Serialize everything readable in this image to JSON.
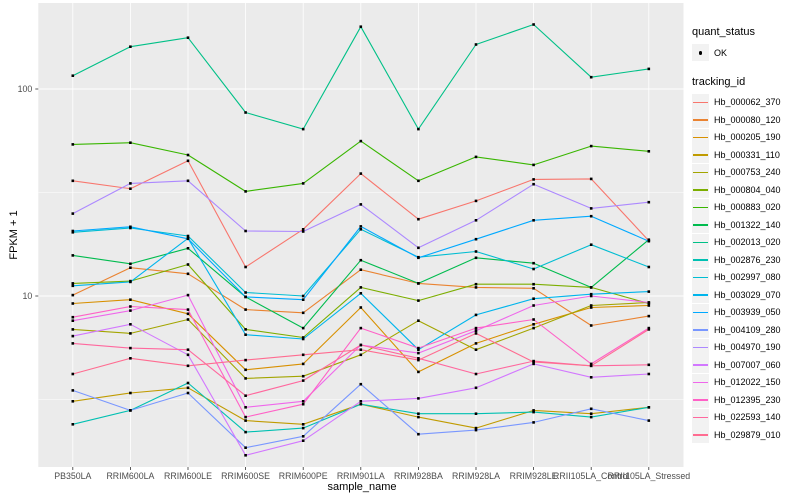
{
  "figure": {
    "x_axis_title": "sample_name",
    "y_axis_title": "FPKM + 1",
    "panel_bg": "#EBEBEB",
    "grid_color": "#FFFFFF",
    "tick_label_color": "#4D4D4D",
    "point_color": "#000000"
  },
  "legend": {
    "quant_status_title": "quant_status",
    "quant_status_items": [
      {
        "label": "OK",
        "marker": "black-point"
      }
    ],
    "tracking_id_title": "tracking_id"
  },
  "chart_data": {
    "type": "line",
    "title": "",
    "xlabel": "sample_name",
    "ylabel": "FPKM + 1",
    "yscale": "log10",
    "yticks": [
      10,
      100
    ],
    "ylim": [
      1.5,
      260
    ],
    "grid": "on",
    "legend_position": "right",
    "marker": "black point on every value",
    "categories": [
      "PB350LA",
      "RRIM600LA",
      "RRIM600LE",
      "RRIM600SE",
      "RRIM600PE",
      "RRIM901LA",
      "RRIM928BA",
      "RRIM928LA",
      "RRIM928LE",
      "RRII105LA_Control",
      "RRII105LA_Stressed"
    ],
    "series": [
      {
        "name": "Hb_000062_370",
        "color": "#F8766D",
        "values": [
          36,
          33,
          45,
          13.8,
          21,
          39,
          23.5,
          28.8,
          36.6,
          36.8,
          18.5
        ]
      },
      {
        "name": "Hb_000080_120",
        "color": "#EA8331",
        "values": [
          10.1,
          13.7,
          12.8,
          8.6,
          8.3,
          13.4,
          11.5,
          11,
          10.9,
          7.2,
          8
        ]
      },
      {
        "name": "Hb_000205_190",
        "color": "#D89000",
        "values": [
          9.2,
          9.6,
          8.2,
          4.4,
          4.7,
          8.8,
          4.3,
          5.9,
          7.3,
          8.8,
          9
        ]
      },
      {
        "name": "Hb_000331_110",
        "color": "#C09B00",
        "values": [
          3.1,
          3.4,
          3.6,
          2.5,
          2.4,
          3,
          2.6,
          2.3,
          2.8,
          2.7,
          2.9
        ]
      },
      {
        "name": "Hb_000753_240",
        "color": "#A3A500",
        "values": [
          6.9,
          6.6,
          7.7,
          4,
          4.1,
          5.2,
          7.6,
          5.5,
          7,
          9,
          9.3
        ]
      },
      {
        "name": "Hb_000804_040",
        "color": "#7CAE00",
        "values": [
          11.5,
          11.8,
          14.2,
          6.9,
          6.3,
          11,
          9.5,
          11.4,
          11.4,
          11,
          9.2
        ]
      },
      {
        "name": "Hb_000883_020",
        "color": "#39B600",
        "values": [
          54,
          55,
          48,
          32,
          35,
          56,
          36,
          47,
          43,
          53,
          50
        ]
      },
      {
        "name": "Hb_001322_140",
        "color": "#00BB4E",
        "values": [
          15.7,
          14.3,
          17,
          9.9,
          7,
          14.9,
          11.5,
          15.3,
          14.4,
          11,
          18.7
        ]
      },
      {
        "name": "Hb_002013_020",
        "color": "#00C087",
        "values": [
          116,
          160,
          177,
          77,
          64,
          200,
          64,
          164,
          205,
          114,
          125
        ]
      },
      {
        "name": "Hb_002876_230",
        "color": "#00C0B2",
        "values": [
          2.4,
          2.8,
          3.8,
          2.2,
          2.3,
          3,
          2.7,
          2.7,
          2.75,
          2.6,
          2.9
        ]
      },
      {
        "name": "Hb_002997_080",
        "color": "#00BDD2",
        "values": [
          20.3,
          21.3,
          19.5,
          10.4,
          10,
          21,
          15.4,
          16.4,
          13.5,
          17.7,
          13.8
        ]
      },
      {
        "name": "Hb_003029_070",
        "color": "#00B5EC",
        "values": [
          11.2,
          11.7,
          19,
          6.5,
          6.2,
          10.3,
          5.5,
          8.1,
          9.7,
          10.2,
          10.5
        ]
      },
      {
        "name": "Hb_003939_050",
        "color": "#00A9FF",
        "values": [
          20.6,
          21.6,
          18.9,
          9.9,
          9.6,
          21.7,
          15.3,
          18.8,
          23.2,
          24.3,
          18.4
        ]
      },
      {
        "name": "Hb_004109_280",
        "color": "#7997FF",
        "values": [
          3.5,
          2.8,
          3.4,
          1.85,
          2.1,
          3.75,
          2.15,
          2.25,
          2.45,
          2.85,
          2.5
        ]
      },
      {
        "name": "Hb_004970_190",
        "color": "#AC88FF",
        "values": [
          25,
          35,
          36,
          20.6,
          20.5,
          27.7,
          17.1,
          23.2,
          34.7,
          26.5,
          28.4
        ]
      },
      {
        "name": "Hb_007007_060",
        "color": "#D277FF",
        "values": [
          6.4,
          7.3,
          5.2,
          1.7,
          2,
          3.1,
          3.2,
          3.6,
          4.7,
          4.05,
          4.2
        ]
      },
      {
        "name": "Hb_012022_150",
        "color": "#EF67EB",
        "values": [
          7.6,
          8.5,
          10.1,
          2.9,
          3.1,
          5.8,
          5.3,
          6.8,
          9,
          10,
          9.3
        ]
      },
      {
        "name": "Hb_012395_230",
        "color": "#FF61C7",
        "values": [
          7.9,
          8.9,
          8.6,
          2.6,
          3,
          7,
          5.6,
          7,
          7.7,
          4.7,
          7
        ]
      },
      {
        "name": "Hb_022593_140",
        "color": "#FF689E",
        "values": [
          5.9,
          5.6,
          5.5,
          3.3,
          3.9,
          5.8,
          5,
          4.2,
          4.85,
          4.6,
          4.65
        ]
      },
      {
        "name": "Hb_029879_010",
        "color": "#FF6C91",
        "values": [
          4.2,
          5,
          4.6,
          4.9,
          5.2,
          5.5,
          4.9,
          6.6,
          4.8,
          4.6,
          6.9
        ]
      }
    ]
  }
}
